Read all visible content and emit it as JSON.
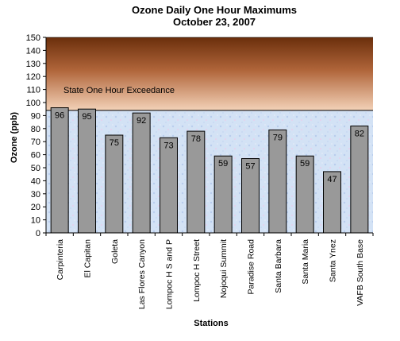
{
  "chart_data": {
    "type": "bar",
    "title": "Ozone Daily One Hour Maximums",
    "subtitle": "October 23, 2007",
    "xlabel": "Stations",
    "ylabel": "Ozone (ppb)",
    "ylim": [
      0,
      150
    ],
    "ytick_step": 10,
    "categories": [
      "Carpinteria",
      "El Capitan",
      "Goleta",
      "Las Flores Canyon",
      "Lompoc H S and P",
      "Lompoc H Street",
      "Nojoqui Summit",
      "Paradise Road",
      "Santa Barbara",
      "Santa Maria",
      "Santa Ynez",
      "VAFB South Base"
    ],
    "values": [
      96,
      95,
      75,
      92,
      73,
      78,
      59,
      57,
      79,
      59,
      47,
      82
    ],
    "threshold": {
      "value": 94,
      "label": "State One Hour Exceedance"
    },
    "colors": {
      "bar": "#999999",
      "band_top": "#6b2f0c",
      "band_bottom": "#f0c8a8",
      "plot_bg": "#cfe0f4"
    }
  }
}
